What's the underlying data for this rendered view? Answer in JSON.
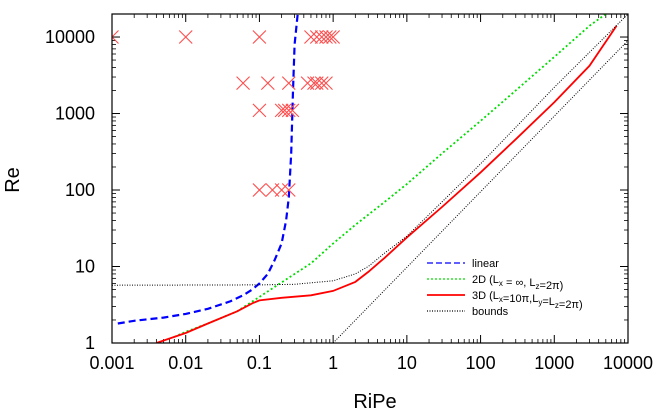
{
  "chart_data": {
    "type": "line",
    "xlabel": "RiPe",
    "ylabel": "Re",
    "xscale": "log",
    "yscale": "log",
    "xlim": [
      0.001,
      10000
    ],
    "ylim": [
      1,
      20000
    ],
    "x_tick_labels": [
      "0.001",
      "0.01",
      "0.1",
      "1",
      "10",
      "100",
      "1000",
      "10000"
    ],
    "y_tick_labels": [
      "1",
      "10",
      "100",
      "1000",
      "10000"
    ],
    "legend_position": "bottom-right",
    "legend": [
      {
        "prefix": "linear",
        "sub1": "",
        "mid": "",
        "sub2": "",
        "suffix": "",
        "color": "#0000ff",
        "dash": "6,3"
      },
      {
        "prefix": "2D (L",
        "sub1": "x",
        "mid": " = ∞, L",
        "sub2": "z",
        "suffix": "=2π)",
        "color": "#00dd00",
        "dash": "2,2"
      },
      {
        "prefix": "3D (L",
        "sub1": "x",
        "mid": "=10π,L",
        "sub2": "y",
        "suffix": "=L",
        "sub3": "z",
        "suffix2": "=2π)",
        "color": "#ff0000",
        "dash": ""
      },
      {
        "prefix": "bounds",
        "sub1": "",
        "mid": "",
        "sub2": "",
        "suffix": "",
        "color": "#000000",
        "dash": "1,1.5"
      }
    ],
    "series": [
      {
        "name": "linear",
        "color": "#0000ff",
        "dash": "7,4",
        "width": 2.2,
        "points": [
          [
            0.0012,
            1.8
          ],
          [
            0.002,
            1.95
          ],
          [
            0.005,
            2.15
          ],
          [
            0.01,
            2.4
          ],
          [
            0.02,
            2.8
          ],
          [
            0.04,
            3.5
          ],
          [
            0.06,
            4.2
          ],
          [
            0.08,
            5.0
          ],
          [
            0.1,
            6.0
          ],
          [
            0.13,
            8.0
          ],
          [
            0.16,
            12
          ],
          [
            0.2,
            20
          ],
          [
            0.23,
            40
          ],
          [
            0.25,
            80
          ],
          [
            0.27,
            300
          ],
          [
            0.285,
            2000
          ],
          [
            0.3,
            8000
          ],
          [
            0.33,
            20000
          ]
        ]
      },
      {
        "name": "2D",
        "color": "#00dd00",
        "dash": "2,2.5",
        "width": 1.8,
        "points": [
          [
            0.007,
            1.2
          ],
          [
            0.01,
            1.4
          ],
          [
            0.02,
            1.8
          ],
          [
            0.05,
            2.6
          ],
          [
            0.1,
            4.0
          ],
          [
            0.2,
            6.2
          ],
          [
            0.5,
            11
          ],
          [
            1,
            20
          ],
          [
            2,
            35
          ],
          [
            5,
            70
          ],
          [
            10,
            120
          ],
          [
            30,
            300
          ],
          [
            100,
            800
          ],
          [
            300,
            2000
          ],
          [
            1000,
            5500
          ],
          [
            3000,
            14000
          ],
          [
            5000,
            20000
          ]
        ]
      },
      {
        "name": "3D",
        "color": "#ff0000",
        "dash": "",
        "width": 1.8,
        "points": [
          [
            0.004,
            1.0
          ],
          [
            0.01,
            1.35
          ],
          [
            0.02,
            1.8
          ],
          [
            0.05,
            2.6
          ],
          [
            0.08,
            3.3
          ],
          [
            0.1,
            3.6
          ],
          [
            0.2,
            3.9
          ],
          [
            0.5,
            4.2
          ],
          [
            1,
            4.8
          ],
          [
            2,
            6.3
          ],
          [
            3,
            8.5
          ],
          [
            5,
            13
          ],
          [
            10,
            24
          ],
          [
            30,
            60
          ],
          [
            100,
            170
          ],
          [
            300,
            460
          ],
          [
            1000,
            1400
          ],
          [
            3000,
            4200
          ],
          [
            7000,
            14000
          ]
        ]
      },
      {
        "name": "bounds-flat",
        "color": "#000000",
        "dash": "1,1.5",
        "width": 1.0,
        "points": [
          [
            0.001,
            5.7
          ],
          [
            0.1,
            5.75
          ],
          [
            0.3,
            5.85
          ],
          [
            1,
            6.5
          ],
          [
            2,
            8
          ],
          [
            3,
            10
          ],
          [
            5,
            15
          ],
          [
            10,
            25
          ],
          [
            30,
            70
          ],
          [
            100,
            220
          ],
          [
            1000,
            2200
          ],
          [
            10000,
            20000
          ]
        ]
      },
      {
        "name": "bounds-line",
        "color": "#000000",
        "dash": "1,1.5",
        "width": 1.0,
        "points": [
          [
            1,
            1.0
          ],
          [
            10000,
            9000
          ]
        ]
      }
    ],
    "markers": {
      "name": "simulations",
      "color": "#ff4d4d",
      "symbol": "x",
      "points": [
        [
          0.001,
          10000
        ],
        [
          0.01,
          10000
        ],
        [
          0.1,
          10000
        ],
        [
          0.5,
          10000
        ],
        [
          0.6,
          10000
        ],
        [
          0.7,
          10000
        ],
        [
          0.8,
          10000
        ],
        [
          0.9,
          10000
        ],
        [
          1.0,
          10000
        ],
        [
          0.06,
          2500
        ],
        [
          0.13,
          2500
        ],
        [
          0.25,
          2500
        ],
        [
          0.45,
          2500
        ],
        [
          0.55,
          2500
        ],
        [
          0.6,
          2500
        ],
        [
          0.7,
          2500
        ],
        [
          0.8,
          2500
        ],
        [
          0.1,
          1100
        ],
        [
          0.2,
          1100
        ],
        [
          0.22,
          1100
        ],
        [
          0.25,
          1100
        ],
        [
          0.28,
          1100
        ],
        [
          0.1,
          100
        ],
        [
          0.15,
          100
        ],
        [
          0.2,
          100
        ],
        [
          0.25,
          100
        ]
      ]
    }
  }
}
